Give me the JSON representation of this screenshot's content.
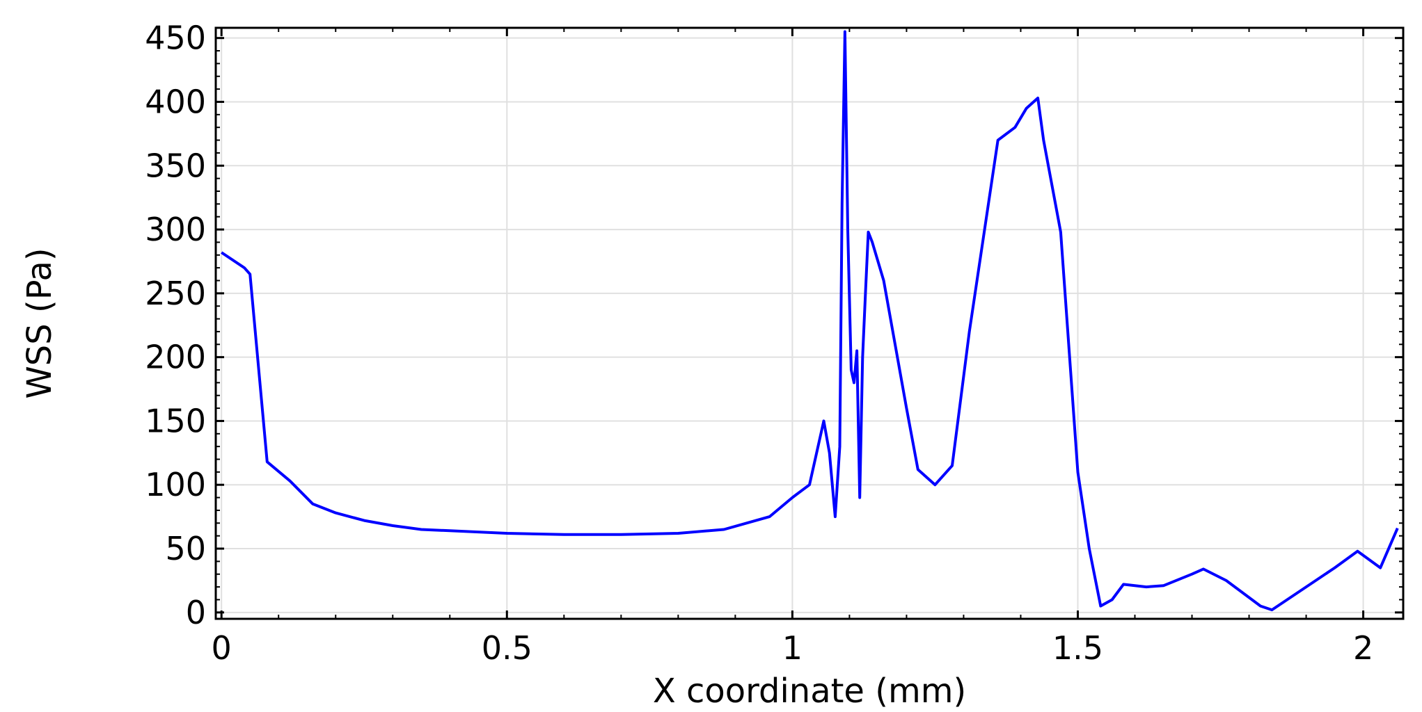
{
  "chart_data": {
    "type": "line",
    "title": "",
    "xlabel": "X coordinate (mm)",
    "ylabel": "WSS (Pa)",
    "xlim": [
      -0.01,
      2.07
    ],
    "ylim": [
      -5,
      458
    ],
    "xticks": [
      0,
      0.5,
      1,
      1.5,
      2
    ],
    "xtick_labels": [
      "0",
      "0.5",
      "1",
      "1.5",
      "2"
    ],
    "yticks": [
      0,
      50,
      100,
      150,
      200,
      250,
      300,
      350,
      400,
      450
    ],
    "ytick_labels": [
      "0",
      "50",
      "100",
      "150",
      "200",
      "250",
      "300",
      "350",
      "400",
      "450"
    ],
    "grid": true,
    "legend": "none",
    "series": [
      {
        "color": "#0000ff",
        "x": [
          0,
          0.04,
          0.05,
          0.08,
          0.12,
          0.16,
          0.2,
          0.25,
          0.3,
          0.35,
          0.4,
          0.5,
          0.6,
          0.7,
          0.8,
          0.88,
          0.96,
          1.0,
          1.03,
          1.055,
          1.065,
          1.075,
          1.083,
          1.087,
          1.092,
          1.097,
          1.103,
          1.108,
          1.113,
          1.118,
          1.123,
          1.128,
          1.133,
          1.14,
          1.16,
          1.18,
          1.2,
          1.22,
          1.25,
          1.28,
          1.31,
          1.33,
          1.36,
          1.39,
          1.41,
          1.43,
          1.44,
          1.47,
          1.5,
          1.52,
          1.54,
          1.56,
          1.58,
          1.62,
          1.65,
          1.7,
          1.72,
          1.76,
          1.82,
          1.84,
          1.9,
          1.95,
          1.99,
          2.03,
          2.06
        ],
        "y": [
          282,
          270,
          265,
          118,
          103,
          85,
          78,
          72,
          68,
          65,
          64,
          62,
          61,
          61,
          62,
          65,
          75,
          90,
          100,
          150,
          125,
          75,
          130,
          320,
          455,
          300,
          190,
          180,
          205,
          90,
          200,
          250,
          298,
          290,
          260,
          210,
          160,
          112,
          100,
          115,
          220,
          280,
          370,
          380,
          395,
          403,
          370,
          298,
          110,
          50,
          5,
          10,
          22,
          20,
          21,
          30,
          34,
          25,
          5,
          2,
          20,
          35,
          48,
          35,
          66
        ]
      }
    ]
  }
}
